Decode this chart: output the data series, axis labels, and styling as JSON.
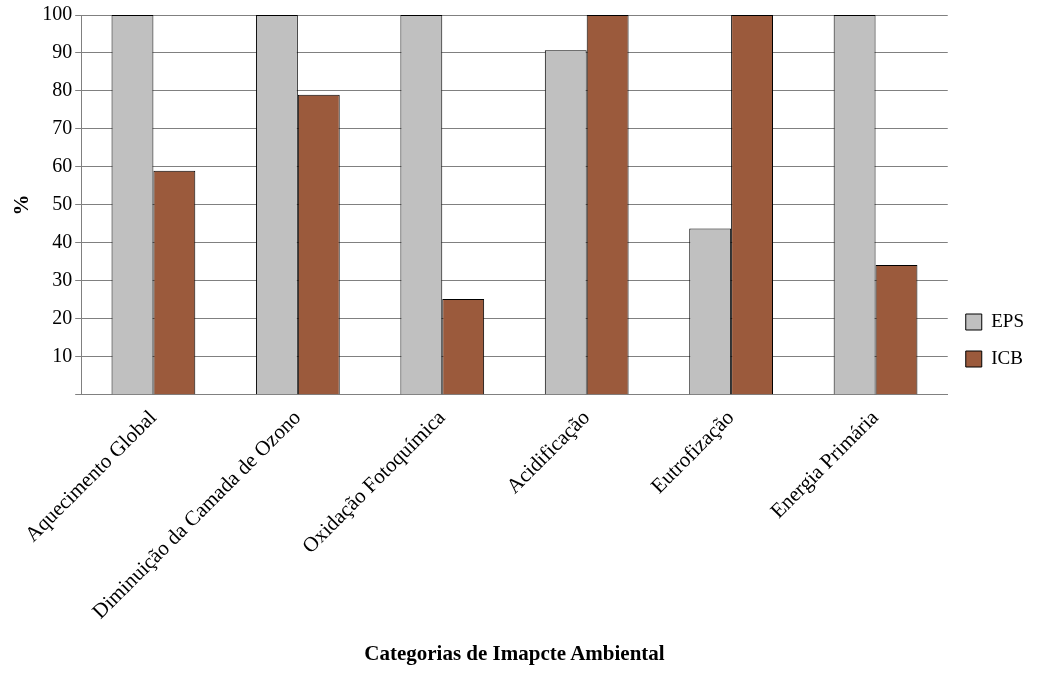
{
  "chart_data": {
    "type": "bar",
    "xlabel": "Categorias de Imapcte Ambiental",
    "ylabel": "%",
    "categories": [
      "Aquecimento Global",
      "Diminuição da Camada de Ozono",
      "Oxidação Fotoquímica",
      "Acidificação",
      "Eutrofização",
      "Energia Primária"
    ],
    "series": [
      {
        "name": "EPS",
        "color": "#c0c0c0",
        "values": [
          100,
          100,
          100,
          90.7,
          43.8,
          100
        ]
      },
      {
        "name": "ICB",
        "color": "#9b5a3c",
        "values": [
          59,
          79,
          25.2,
          100,
          100,
          34.2
        ]
      }
    ],
    "ylim": [
      0,
      100
    ],
    "yticks": [
      {
        "value": 0,
        "label": null
      },
      10,
      20,
      30,
      40,
      50,
      60,
      70,
      80,
      90,
      100
    ],
    "grid": "y",
    "legend": "right"
  }
}
